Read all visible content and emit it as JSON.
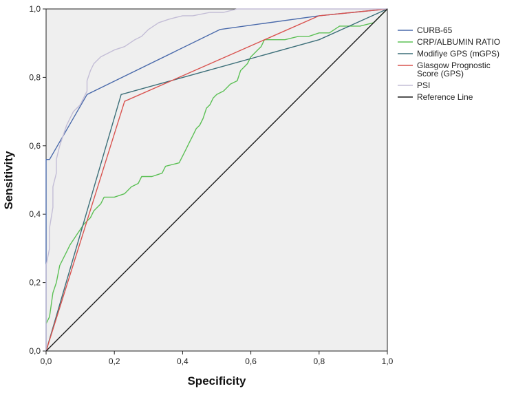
{
  "chart_data": {
    "type": "line",
    "title": "",
    "xlabel": "Specificity",
    "ylabel": "Sensitivity",
    "xlim": [
      0,
      1
    ],
    "ylim": [
      0,
      1
    ],
    "x_ticks": [
      "0,0",
      "0,2",
      "0,4",
      "0,6",
      "0,8",
      "1,0"
    ],
    "y_ticks": [
      "0,0",
      "0,2",
      "0,4",
      "0,6",
      "0,8",
      "1,0"
    ],
    "grid": false,
    "legend_position": "right",
    "series": [
      {
        "name": "CURB-65",
        "color": "#4a6aab",
        "points": [
          [
            0,
            0
          ],
          [
            0,
            0.56
          ],
          [
            0.01,
            0.56
          ],
          [
            0.12,
            0.75
          ],
          [
            0.51,
            0.94
          ],
          [
            0.8,
            0.98
          ],
          [
            1,
            1
          ]
        ]
      },
      {
        "name": "CRP/ALBUMIN RATIO",
        "color": "#5cc055",
        "points": [
          [
            0,
            0.08
          ],
          [
            0.01,
            0.1
          ],
          [
            0.02,
            0.17
          ],
          [
            0.03,
            0.2
          ],
          [
            0.04,
            0.25
          ],
          [
            0.05,
            0.27
          ],
          [
            0.06,
            0.29
          ],
          [
            0.07,
            0.31
          ],
          [
            0.09,
            0.34
          ],
          [
            0.11,
            0.37
          ],
          [
            0.13,
            0.39
          ],
          [
            0.14,
            0.41
          ],
          [
            0.16,
            0.43
          ],
          [
            0.17,
            0.45
          ],
          [
            0.2,
            0.45
          ],
          [
            0.23,
            0.46
          ],
          [
            0.25,
            0.48
          ],
          [
            0.27,
            0.49
          ],
          [
            0.28,
            0.51
          ],
          [
            0.31,
            0.51
          ],
          [
            0.34,
            0.52
          ],
          [
            0.35,
            0.54
          ],
          [
            0.39,
            0.55
          ],
          [
            0.4,
            0.57
          ],
          [
            0.41,
            0.59
          ],
          [
            0.42,
            0.61
          ],
          [
            0.43,
            0.63
          ],
          [
            0.44,
            0.65
          ],
          [
            0.45,
            0.66
          ],
          [
            0.46,
            0.68
          ],
          [
            0.47,
            0.71
          ],
          [
            0.48,
            0.72
          ],
          [
            0.49,
            0.74
          ],
          [
            0.5,
            0.75
          ],
          [
            0.52,
            0.76
          ],
          [
            0.53,
            0.77
          ],
          [
            0.54,
            0.78
          ],
          [
            0.56,
            0.79
          ],
          [
            0.57,
            0.82
          ],
          [
            0.58,
            0.83
          ],
          [
            0.59,
            0.84
          ],
          [
            0.6,
            0.86
          ],
          [
            0.61,
            0.87
          ],
          [
            0.62,
            0.88
          ],
          [
            0.63,
            0.89
          ],
          [
            0.64,
            0.91
          ],
          [
            0.66,
            0.91
          ],
          [
            0.68,
            0.91
          ],
          [
            0.7,
            0.91
          ],
          [
            0.74,
            0.92
          ],
          [
            0.77,
            0.92
          ],
          [
            0.8,
            0.93
          ],
          [
            0.83,
            0.93
          ],
          [
            0.86,
            0.95
          ],
          [
            0.89,
            0.95
          ],
          [
            0.92,
            0.95
          ],
          [
            0.96,
            0.96
          ],
          [
            1,
            1
          ]
        ]
      },
      {
        "name": "Modifiye GPS (mGPS)",
        "color": "#3b6e78",
        "points": [
          [
            0,
            0
          ],
          [
            0.22,
            0.75
          ],
          [
            0.8,
            0.91
          ],
          [
            1,
            1
          ]
        ]
      },
      {
        "name": "Glasgow Prognostic Score (GPS)",
        "color": "#d9534f",
        "points": [
          [
            0,
            0
          ],
          [
            0.23,
            0.73
          ],
          [
            0.8,
            0.98
          ],
          [
            1,
            1
          ]
        ]
      },
      {
        "name": "PSI",
        "color": "#c3bdd6",
        "points": [
          [
            0,
            0
          ],
          [
            0,
            0.25
          ],
          [
            0.01,
            0.3
          ],
          [
            0.01,
            0.36
          ],
          [
            0.02,
            0.42
          ],
          [
            0.02,
            0.48
          ],
          [
            0.03,
            0.52
          ],
          [
            0.03,
            0.56
          ],
          [
            0.04,
            0.6
          ],
          [
            0.05,
            0.63
          ],
          [
            0.06,
            0.66
          ],
          [
            0.07,
            0.68
          ],
          [
            0.08,
            0.7
          ],
          [
            0.1,
            0.72
          ],
          [
            0.11,
            0.74
          ],
          [
            0.12,
            0.76
          ],
          [
            0.12,
            0.79
          ],
          [
            0.13,
            0.82
          ],
          [
            0.14,
            0.84
          ],
          [
            0.16,
            0.86
          ],
          [
            0.18,
            0.87
          ],
          [
            0.2,
            0.88
          ],
          [
            0.23,
            0.89
          ],
          [
            0.26,
            0.91
          ],
          [
            0.28,
            0.92
          ],
          [
            0.3,
            0.94
          ],
          [
            0.33,
            0.96
          ],
          [
            0.36,
            0.97
          ],
          [
            0.4,
            0.98
          ],
          [
            0.43,
            0.98
          ],
          [
            0.48,
            0.99
          ],
          [
            0.52,
            0.99
          ],
          [
            0.56,
            1
          ],
          [
            1,
            1
          ]
        ]
      },
      {
        "name": "Reference Line",
        "color": "#1a1a1a",
        "points": [
          [
            0,
            0
          ],
          [
            1,
            1
          ]
        ]
      }
    ]
  }
}
